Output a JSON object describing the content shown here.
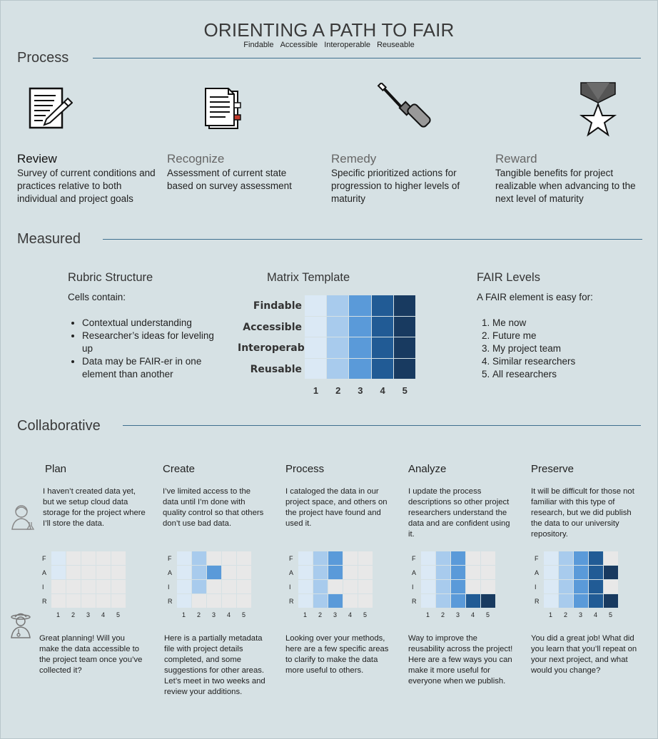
{
  "header": {
    "title": "ORIENTING A PATH TO FAIR",
    "subtitle_items": [
      "Findable",
      "Accessible",
      "Interoperable",
      "Reuseable"
    ]
  },
  "sections": {
    "process": "Process",
    "measured": "Measured",
    "collaborative": "Collaborative"
  },
  "process_steps": [
    {
      "icon": "document-pencil-icon",
      "title": "Review",
      "desc": "Survey of current conditions and practices relative to both individual and project goals"
    },
    {
      "icon": "checklist-document-icon",
      "title": "Recognize",
      "desc": "Assessment of current state based on survey assessment"
    },
    {
      "icon": "screwdriver-icon",
      "title": "Remedy",
      "desc": "Specific prioritized actions for progression to higher levels of maturity"
    },
    {
      "icon": "star-medal-icon",
      "title": "Reward",
      "desc": "Tangible benefits for project realizable when advancing to the next level of maturity"
    }
  ],
  "rubric": {
    "heading": "Rubric Structure",
    "intro": "Cells contain:",
    "bullets": [
      "Contextual understanding",
      "Researcher’s ideas for leveling up",
      "Data may be FAIR-er in one element than another"
    ]
  },
  "matrix": {
    "heading": "Matrix Template",
    "rows": [
      "Findable",
      "Accessible",
      "Interoperable",
      "Reusable"
    ],
    "cols": [
      "1",
      "2",
      "3",
      "4",
      "5"
    ],
    "colors": [
      "#dbe9f5",
      "#a8cbed",
      "#5a9ad9",
      "#215b95",
      "#183a60"
    ]
  },
  "fair_levels": {
    "heading": "FAIR Levels",
    "intro": "A FAIR element is easy for:",
    "items": [
      "Me now",
      "Future me",
      "My project team",
      "Similar researchers",
      "All researchers"
    ]
  },
  "phases": [
    {
      "name": "Plan",
      "quote": "I haven’t created data yet, but we setup cloud data storage for the project where I’ll store the data.",
      "reply": "Great planning!  Will you make the data accessible to the project team once you’ve collected it?",
      "levels": [
        1,
        1,
        0,
        0
      ]
    },
    {
      "name": "Create",
      "quote": "I’ve limited access to the data until I’m done with quality control so that others don’t use bad data.",
      "reply": "Here is a partially metadata file with project details completed, and some suggestions for other areas.  Let’s meet in two weeks and review your additions.",
      "levels": [
        2,
        3,
        2,
        1
      ]
    },
    {
      "name": "Process",
      "quote": "I cataloged the data in our project space, and others on the project have found and used it.",
      "reply": "Looking over your methods, here are a few specific areas to clarify to make the data more useful to others.",
      "levels": [
        3,
        3,
        2,
        3
      ]
    },
    {
      "name": "Analyze",
      "quote": "I update the process descriptions so other project researchers understand the data and are confident using it.",
      "reply": "Way to improve the reusability across the project!  Here are a few ways you can make it more useful for everyone when we publish.",
      "levels": [
        3,
        3,
        3,
        5
      ]
    },
    {
      "name": "Preserve",
      "quote": "It will be difficult for those not familiar with this type of research, but we did publish the data to our university repository.",
      "reply": "You did a great job!  What did you learn that you’ll repeat on your next project, and what would you change?",
      "levels": [
        4,
        5,
        4,
        5
      ]
    }
  ],
  "grid": {
    "row_labels": [
      "F",
      "A",
      "I",
      "R"
    ],
    "col_labels": [
      "1",
      "2",
      "3",
      "4",
      "5"
    ],
    "empty_color": "#e8e8e8",
    "level_colors": [
      "#dbe9f5",
      "#a8cbed",
      "#5a9ad9",
      "#215b95",
      "#183a60"
    ]
  },
  "people": [
    {
      "icon": "researcher-person-icon"
    },
    {
      "icon": "advisor-person-icon"
    }
  ]
}
